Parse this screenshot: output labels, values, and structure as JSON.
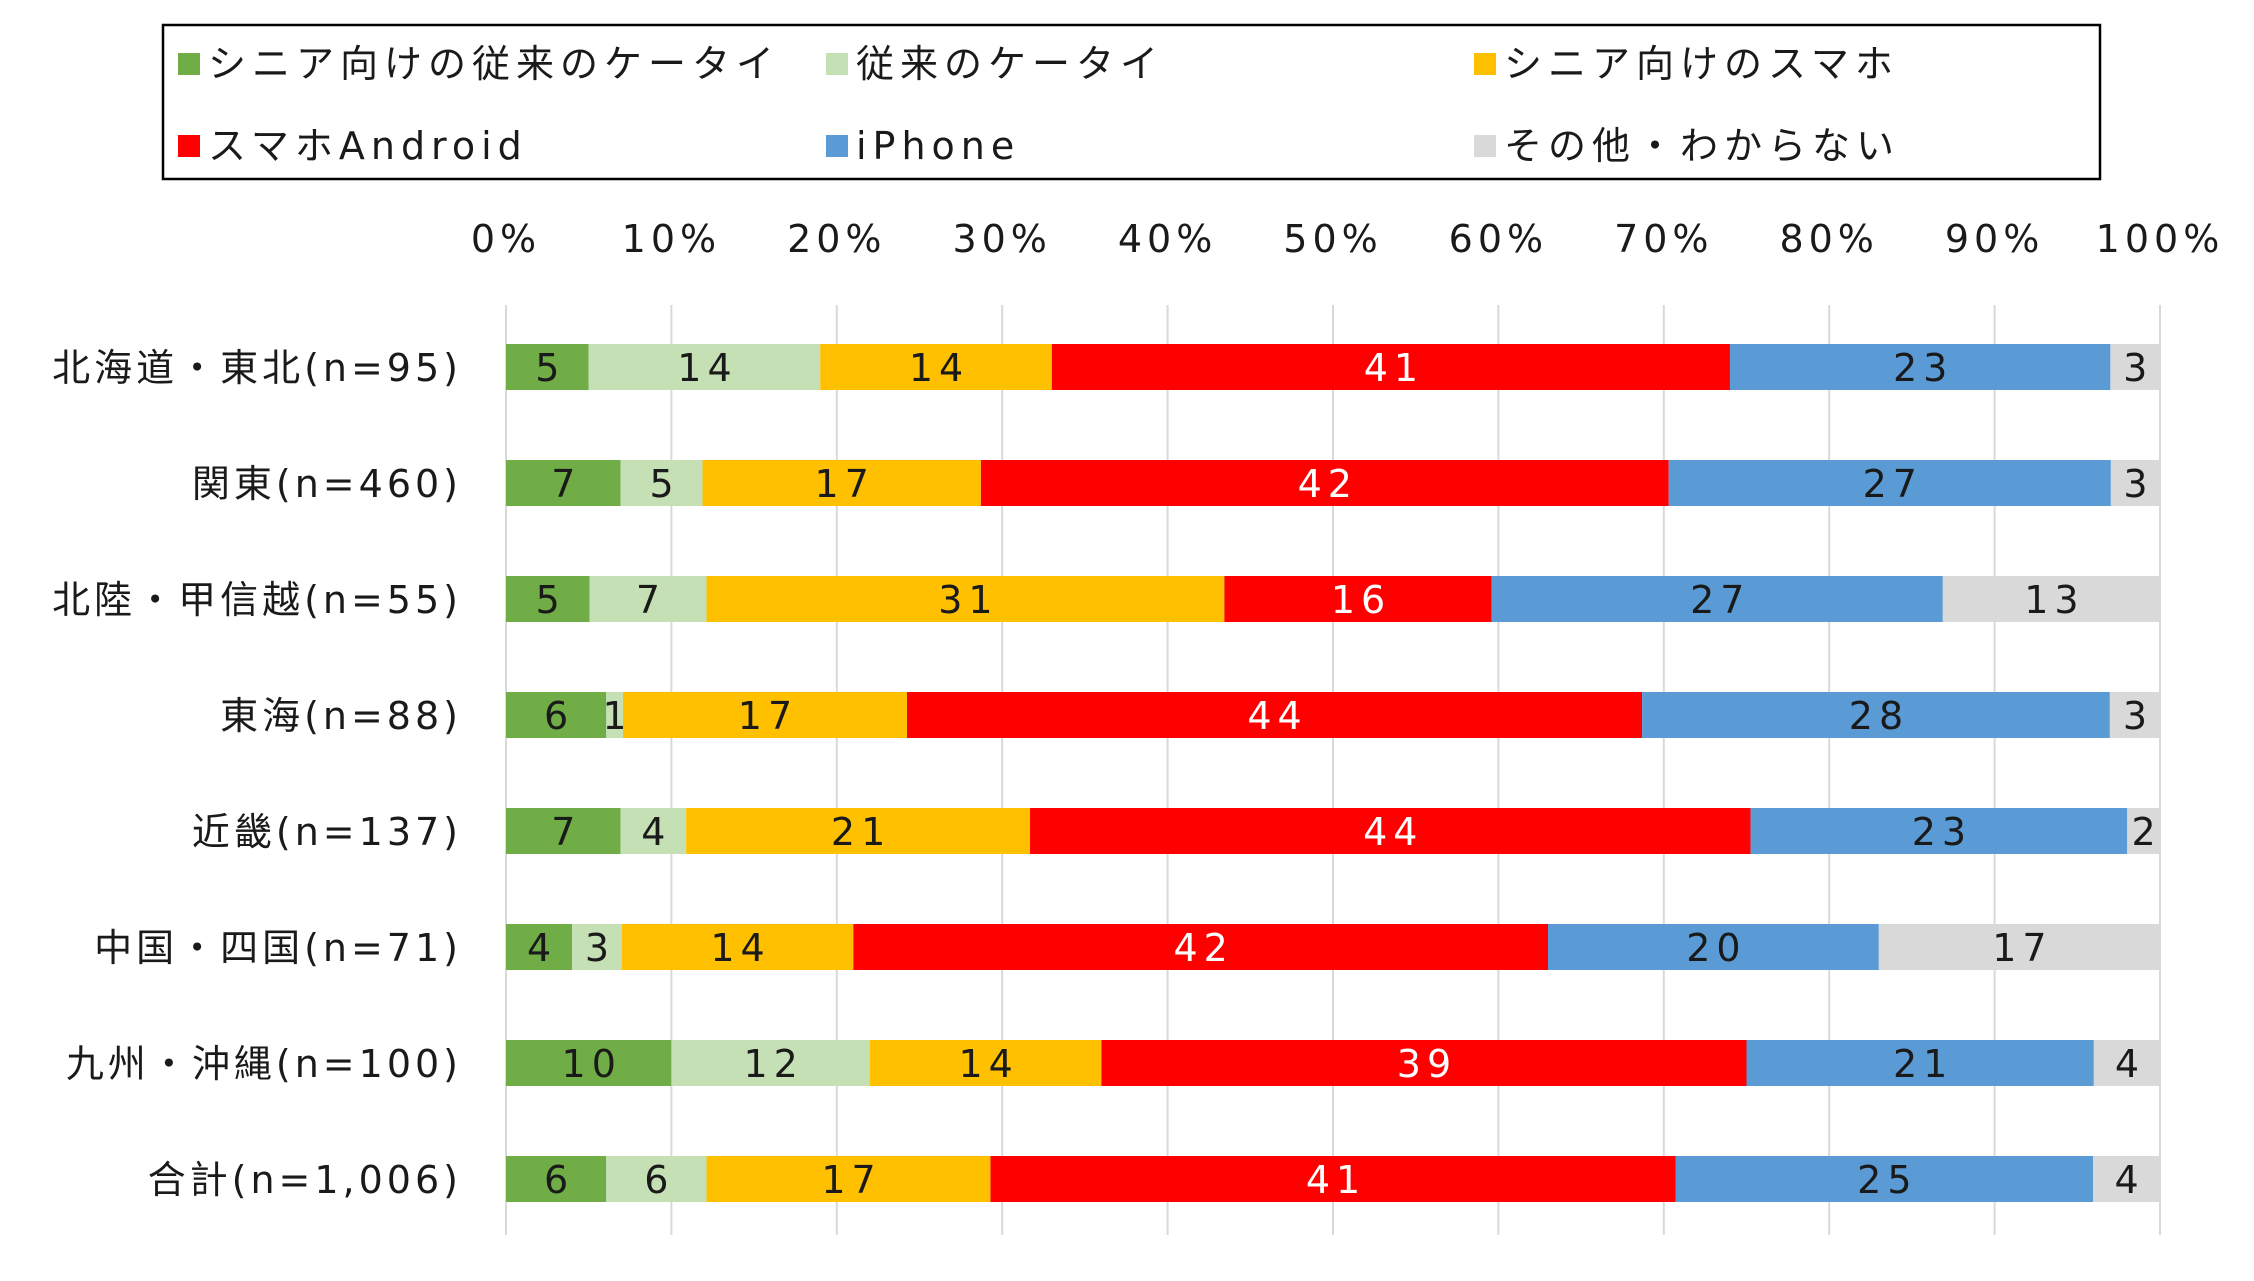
{
  "chart_data": {
    "type": "bar",
    "orientation": "horizontal",
    "stacked": true,
    "title": "",
    "xlabel": "",
    "ylabel": "",
    "xlim": [
      0,
      100
    ],
    "grid": true,
    "legend_position": "top",
    "x_ticks": [
      "0%",
      "10%",
      "20%",
      "30%",
      "40%",
      "50%",
      "60%",
      "70%",
      "80%",
      "90%",
      "100%"
    ],
    "categories": [
      "北海道・東北(n=95)",
      "関東(n=460)",
      "北陸・甲信越(n=55)",
      "東海(n=88)",
      "近畿(n=137)",
      "中国・四国(n=71)",
      "九州・沖縄(n=100)",
      "合計(n=1,006)"
    ],
    "series": [
      {
        "name": "シニア向けの従来のケータイ",
        "color": "#70ad47",
        "label_color": "#1a1a1a",
        "values": [
          5,
          7,
          5,
          6,
          7,
          4,
          10,
          6
        ]
      },
      {
        "name": "従来のケータイ",
        "color": "#c5e0b4",
        "label_color": "#1a1a1a",
        "values": [
          14,
          5,
          7,
          1,
          4,
          3,
          12,
          6
        ]
      },
      {
        "name": "シニア向けのスマホ",
        "color": "#ffc000",
        "label_color": "#1a1a1a",
        "values": [
          14,
          17,
          31,
          17,
          21,
          14,
          14,
          17
        ]
      },
      {
        "name": "スマホAndroid",
        "color": "#ff0000",
        "label_color": "#ffffff",
        "values": [
          41,
          42,
          16,
          44,
          44,
          42,
          39,
          41
        ]
      },
      {
        "name": "iPhone",
        "color": "#5b9bd5",
        "label_color": "#1a1a1a",
        "values": [
          23,
          27,
          27,
          28,
          23,
          20,
          21,
          25
        ]
      },
      {
        "name": "その他・わからない",
        "color": "#d9d9d9",
        "label_color": "#1a1a1a",
        "values": [
          3,
          3,
          13,
          3,
          2,
          17,
          4,
          4
        ]
      }
    ]
  }
}
